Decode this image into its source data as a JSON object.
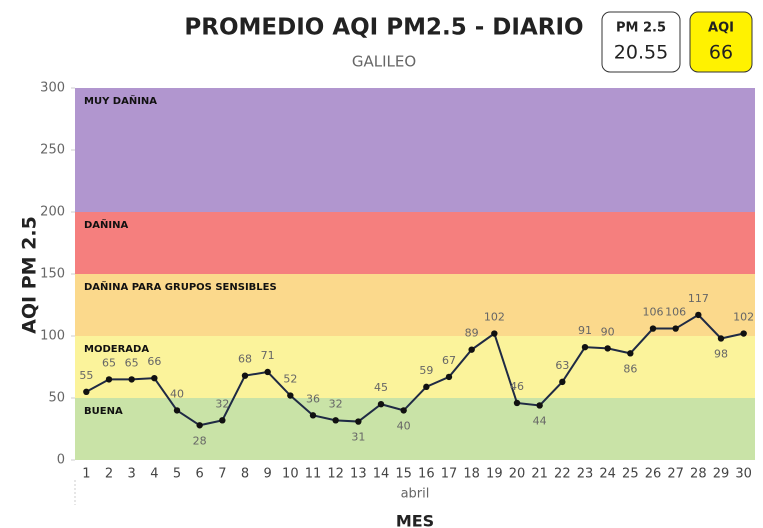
{
  "chart_data": {
    "type": "line",
    "title": "PROMEDIO AQI PM2.5 - DIARIO",
    "subtitle": "GALILEO",
    "cards": [
      {
        "label": "PM 2.5",
        "value": "20.55",
        "color": "#ffffff"
      },
      {
        "label": "AQI",
        "value": "66",
        "color": "#fff200"
      }
    ],
    "y_label": "AQI PM 2.5",
    "x_group_label": "abril",
    "x_label": "MES",
    "categories": [
      "1",
      "2",
      "3",
      "4",
      "5",
      "6",
      "7",
      "8",
      "9",
      "10",
      "11",
      "12",
      "13",
      "14",
      "15",
      "16",
      "17",
      "18",
      "19",
      "20",
      "21",
      "22",
      "23",
      "24",
      "25",
      "26",
      "27",
      "28",
      "29",
      "30"
    ],
    "series": [
      {
        "name": "AQI PM 2.5",
        "color": "#1f2a44",
        "values": [
          55,
          65,
          65,
          66,
          40,
          28,
          32,
          68,
          71,
          52,
          36,
          32,
          31,
          45,
          40,
          59,
          67,
          89,
          102,
          46,
          44,
          63,
          91,
          90,
          86,
          106,
          106,
          117,
          98,
          102
        ]
      }
    ],
    "bands": [
      {
        "label": "BUENA",
        "from": 0,
        "to": 50,
        "color": "#c9e3a7"
      },
      {
        "label": "MODERADA",
        "from": 50,
        "to": 100,
        "color": "#fbf39b"
      },
      {
        "label": "DAÑINA PARA GRUPOS SENSIBLES",
        "from": 100,
        "to": 150,
        "color": "#fbd98c"
      },
      {
        "label": "DAÑINA",
        "from": 150,
        "to": 200,
        "color": "#f57f7e"
      },
      {
        "label": "MUY DAÑINA",
        "from": 200,
        "to": 300,
        "color": "#b196cf"
      }
    ],
    "ylim": [
      0,
      300
    ],
    "yticks": [
      0,
      50,
      100,
      150,
      200,
      250,
      300
    ]
  }
}
